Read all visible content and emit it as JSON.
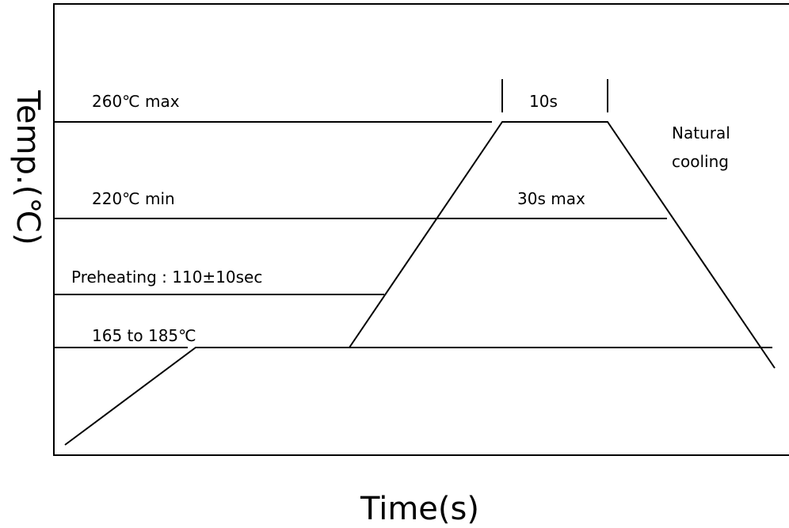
{
  "axes": {
    "y_label": "Temp.(℃)",
    "x_label": "Time(s)"
  },
  "levels": {
    "peak": "260℃  max",
    "reflow": "220℃  min",
    "preheat": "Preheating  :  110±10sec",
    "soak": "165 to 185℃"
  },
  "annotations": {
    "peak_duration": "10s",
    "reflow_duration": "30s max",
    "cooling_line1": "Natural",
    "cooling_line2": "cooling"
  }
}
